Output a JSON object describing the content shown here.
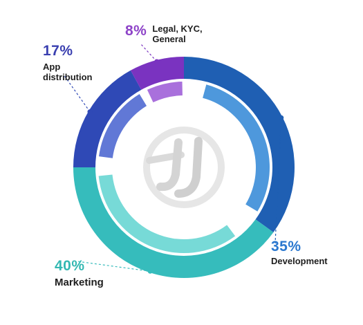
{
  "chart_data": {
    "type": "pie",
    "style": "donut",
    "start_angle_deg": 0,
    "direction": "clockwise",
    "slices": [
      {
        "label": "Development",
        "value": 35,
        "value_text": "35%",
        "color": "#1f5fb3",
        "color_inner": "#2f86d6"
      },
      {
        "label": "Marketing",
        "value": 40,
        "value_text": "40%",
        "color": "#36bcbc",
        "color_inner": "#5fd4d0"
      },
      {
        "label": "App distribution",
        "value": 17,
        "value_text": "17%",
        "color": "#2f49b6",
        "color_inner": "#4560cf"
      },
      {
        "label": "Legal, KYC, General",
        "value": 8,
        "value_text": "8%",
        "color": "#7a33c0",
        "color_inner": "#9a57d6"
      }
    ],
    "center_logo": "JJ monogram logo",
    "legend": "none (callout labels)"
  }
}
